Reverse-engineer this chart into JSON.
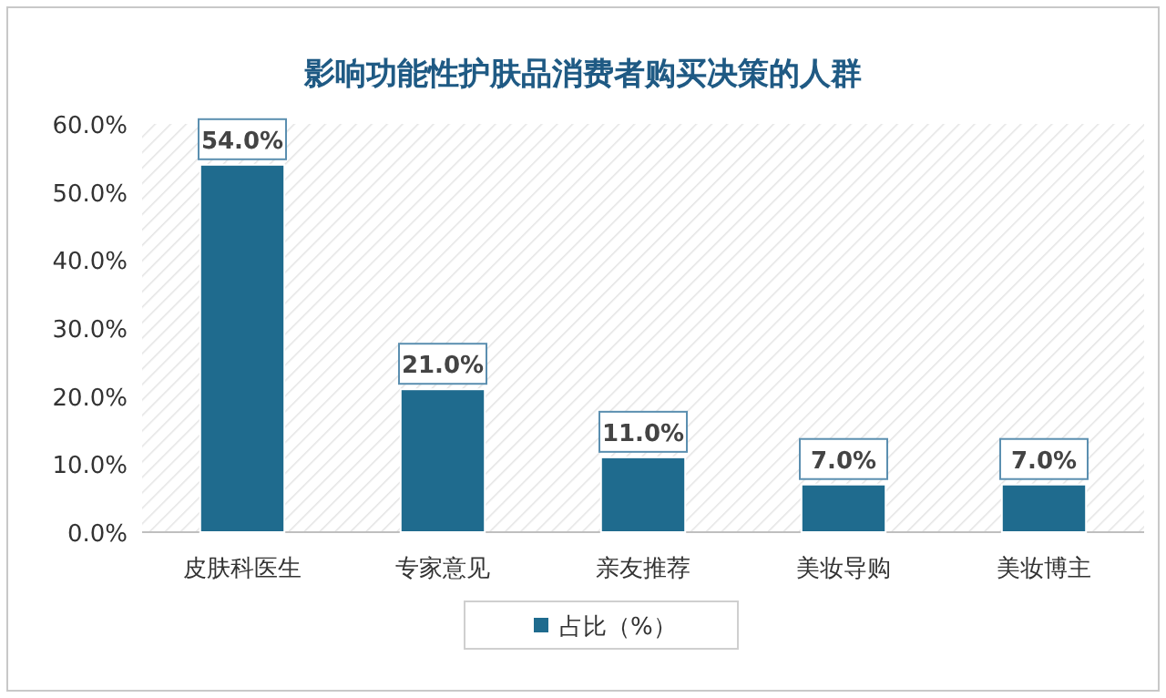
{
  "chart_data": {
    "type": "bar",
    "title": "影响功能性护肤品消费者购买决策的人群",
    "categories": [
      "皮肤科医生",
      "专家意见",
      "亲友推荐",
      "美妆导购",
      "美妆博主"
    ],
    "series": [
      {
        "name": "占比（%）",
        "color": "#1f6b8e",
        "values": [
          54,
          21,
          11,
          7,
          7
        ],
        "value_labels": [
          "54.0%",
          "21.0%",
          "11.0%",
          "7.0%",
          "7.0%"
        ]
      }
    ],
    "ylim": [
      0,
      60
    ],
    "yticks": [
      {
        "value": 0,
        "label": "0.0%"
      },
      {
        "value": 10,
        "label": "10.0%"
      },
      {
        "value": 20,
        "label": "20.0%"
      },
      {
        "value": 30,
        "label": "30.0%"
      },
      {
        "value": 40,
        "label": "40.0%"
      },
      {
        "value": 50,
        "label": "50.0%"
      },
      {
        "value": 60,
        "label": "60.0%"
      }
    ],
    "legend": "bottom",
    "grid": false
  }
}
